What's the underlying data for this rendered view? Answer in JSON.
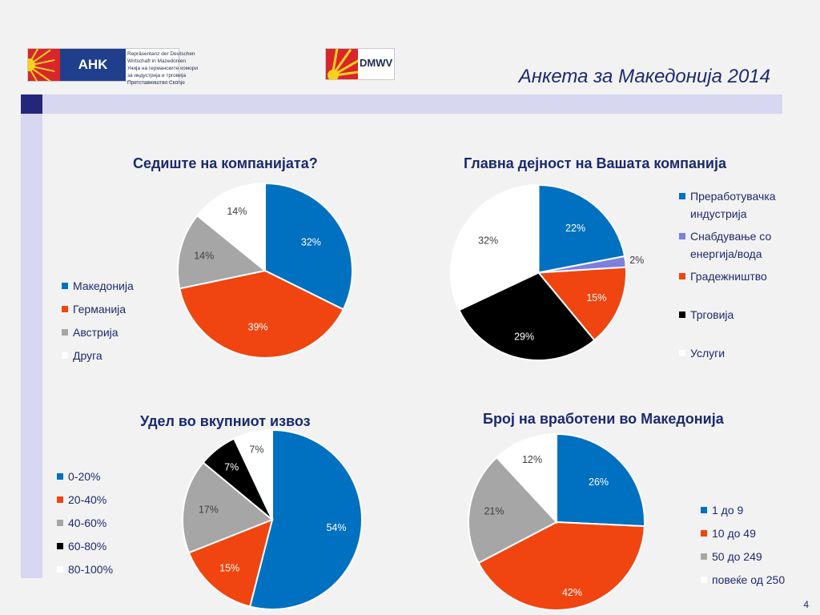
{
  "slide": {
    "title": "Анкета за Македонија 2014",
    "page_number": "4"
  },
  "logos": {
    "ahk_mark": "AHK",
    "ahk_lines": [
      "Repräsentanz der Deutschen",
      "Wirtschaft in Mazedonien",
      "Унија на германските комори",
      "за индустрија и трговија",
      "Претставништво Скопје"
    ],
    "dmwv": "DMWV"
  },
  "chart_data": [
    {
      "id": "headquarters",
      "type": "pie",
      "title": "Седиште на компанијата?",
      "labels": [
        "Македонија",
        "Германија",
        "Австрија",
        "Друга"
      ],
      "values": [
        32,
        39,
        14,
        14
      ],
      "value_labels": [
        "32%",
        "39%",
        "14%",
        "14%"
      ],
      "colors": [
        "#0070c0",
        "#f04510",
        "#a6a6a6",
        "#ffffff"
      ],
      "legend_position": "left"
    },
    {
      "id": "main_activity",
      "type": "pie",
      "title": "Главна дејност на Вашата компанија",
      "labels": [
        "Преработувачка индустрија",
        "Снабдување со енергија/вода",
        "Градежништво",
        "Трговија",
        "Услуги"
      ],
      "values": [
        22,
        2,
        15,
        29,
        32
      ],
      "value_labels": [
        "22%",
        "2%",
        "15%",
        "29%",
        "32%"
      ],
      "colors": [
        "#0070c0",
        "#7b7fde",
        "#f04510",
        "#000000",
        "#ffffff"
      ],
      "legend_position": "right"
    },
    {
      "id": "export_share",
      "type": "pie",
      "title": "Удел во вкупниот извоз",
      "labels": [
        "0-20%",
        "20-40%",
        "40-60%",
        "60-80%",
        "80-100%"
      ],
      "values": [
        54,
        15,
        17,
        7,
        7
      ],
      "value_labels": [
        "54%",
        "15%",
        "17%",
        "7%",
        "7%"
      ],
      "colors": [
        "#0070c0",
        "#f04510",
        "#a6a6a6",
        "#000000",
        "#ffffff"
      ],
      "legend_position": "left"
    },
    {
      "id": "employees",
      "type": "pie",
      "title": "Број на вработени во Македонија",
      "labels": [
        "1 до 9",
        "10 до 49",
        "50 до 249",
        "повеќе од 250"
      ],
      "values": [
        26,
        42,
        21,
        12
      ],
      "value_labels": [
        "26%",
        "42%",
        "21%",
        "12%"
      ],
      "colors": [
        "#0070c0",
        "#f04510",
        "#a6a6a6",
        "#ffffff"
      ],
      "legend_position": "right"
    }
  ]
}
